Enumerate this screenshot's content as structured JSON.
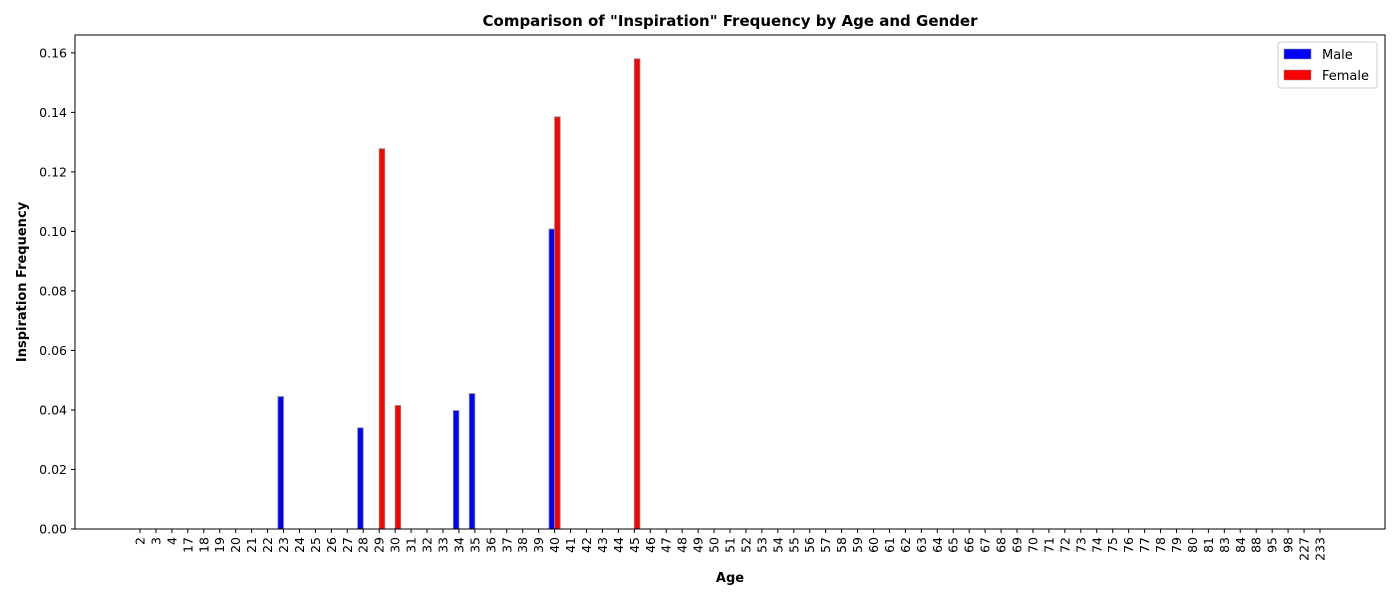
{
  "chart_data": {
    "type": "bar",
    "title": "Comparison of \"Inspiration\" Frequency by Age and Gender",
    "xlabel": "Age",
    "ylabel": "Inspiration Frequency",
    "ylim": [
      0,
      0.166
    ],
    "yticks": [
      0.0,
      0.02,
      0.04,
      0.06,
      0.08,
      0.1,
      0.12,
      0.14,
      0.16
    ],
    "ytick_labels": [
      "0.00",
      "0.02",
      "0.04",
      "0.06",
      "0.08",
      "0.10",
      "0.12",
      "0.14",
      "0.16"
    ],
    "grid": false,
    "legend_position": "top-right",
    "categories": [
      "2",
      "3",
      "4",
      "17",
      "18",
      "19",
      "20",
      "21",
      "22",
      "23",
      "24",
      "25",
      "26",
      "27",
      "28",
      "29",
      "30",
      "31",
      "32",
      "33",
      "34",
      "35",
      "36",
      "37",
      "38",
      "39",
      "40",
      "41",
      "42",
      "43",
      "44",
      "45",
      "46",
      "47",
      "48",
      "49",
      "50",
      "51",
      "52",
      "53",
      "54",
      "55",
      "56",
      "57",
      "58",
      "59",
      "60",
      "61",
      "62",
      "63",
      "64",
      "65",
      "66",
      "67",
      "68",
      "69",
      "70",
      "71",
      "72",
      "73",
      "74",
      "75",
      "76",
      "77",
      "78",
      "79",
      "80",
      "81",
      "83",
      "84",
      "88",
      "95",
      "98",
      "227",
      "233"
    ],
    "series": [
      {
        "name": "Male",
        "color": "#0000ff",
        "values": [
          0,
          0,
          0,
          0,
          0,
          0,
          0,
          0,
          0,
          0.0445,
          0,
          0,
          0,
          0,
          0.034,
          0,
          0,
          0,
          0,
          0,
          0.0398,
          0.0455,
          0,
          0,
          0,
          0,
          0.1008,
          0,
          0,
          0,
          0,
          0,
          0,
          0,
          0,
          0,
          0,
          0,
          0,
          0,
          0,
          0,
          0,
          0,
          0,
          0,
          0,
          0,
          0,
          0,
          0,
          0,
          0,
          0,
          0,
          0,
          0,
          0,
          0,
          0,
          0,
          0,
          0,
          0,
          0,
          0,
          0,
          0,
          0,
          0,
          0,
          0,
          0,
          0,
          0
        ]
      },
      {
        "name": "Female",
        "color": "#ff0000",
        "values": [
          0,
          0,
          0,
          0,
          0,
          0,
          0,
          0,
          0,
          0,
          0,
          0,
          0,
          0,
          0,
          0.1278,
          0.0415,
          0,
          0,
          0,
          0,
          0,
          0,
          0,
          0,
          0,
          0.1385,
          0,
          0,
          0,
          0,
          0.158,
          0,
          0,
          0,
          0,
          0,
          0,
          0,
          0,
          0,
          0,
          0,
          0,
          0,
          0,
          0,
          0,
          0,
          0,
          0,
          0,
          0,
          0,
          0,
          0,
          0,
          0,
          0,
          0,
          0,
          0,
          0,
          0,
          0,
          0,
          0,
          0,
          0,
          0,
          0,
          0,
          0,
          0,
          0
        ]
      }
    ]
  }
}
